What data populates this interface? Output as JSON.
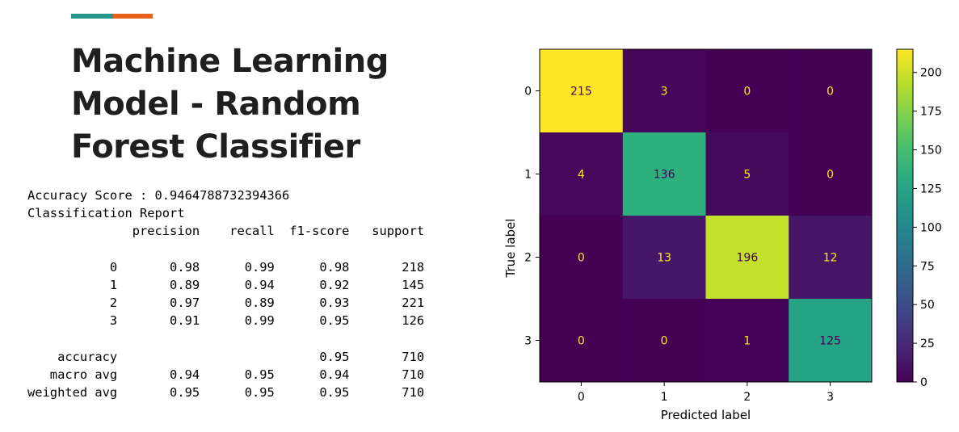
{
  "page": {
    "title_lines": [
      "Machine Learning",
      "Model - Random",
      "Forest Classifier"
    ],
    "accent_colors": [
      "#26958b",
      "#e8621c"
    ]
  },
  "report": {
    "lines": [
      "Accuracy Score : 0.9464788732394366",
      "Classification Report",
      "              precision    recall  f1-score   support",
      "",
      "           0       0.98      0.99      0.98       218",
      "           1       0.89      0.94      0.92       145",
      "           2       0.97      0.89      0.93       221",
      "           3       0.91      0.99      0.95       126",
      "",
      "    accuracy                           0.95       710",
      "   macro avg       0.94      0.95      0.94       710",
      "weighted avg       0.95      0.95      0.95       710"
    ]
  },
  "chart_data": {
    "type": "heatmap",
    "x_categories": [
      "0",
      "1",
      "2",
      "3"
    ],
    "y_categories": [
      "0",
      "1",
      "2",
      "3"
    ],
    "matrix": [
      [
        215,
        3,
        0,
        0
      ],
      [
        4,
        136,
        5,
        0
      ],
      [
        0,
        13,
        196,
        12
      ],
      [
        0,
        0,
        1,
        125
      ]
    ],
    "xlabel": "Predicted label",
    "ylabel": "True label",
    "colormap": "viridis",
    "colorbar": {
      "min": 0,
      "max": 215,
      "ticks": [
        0,
        25,
        50,
        75,
        100,
        125,
        150,
        175,
        200
      ]
    },
    "text_colors": {
      "on_dark": "#fde725",
      "on_light": "#440154"
    }
  }
}
